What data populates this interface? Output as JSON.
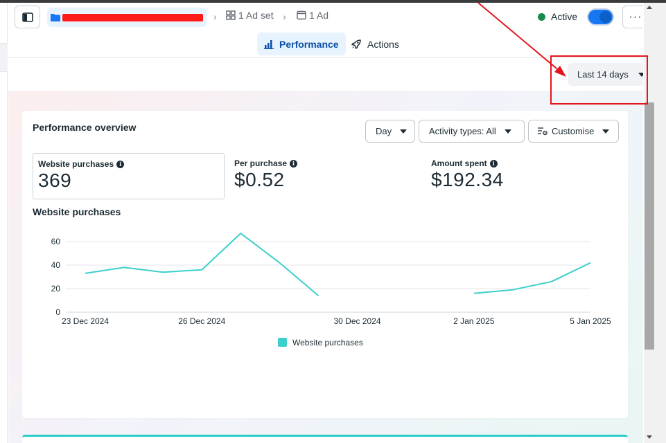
{
  "header": {
    "campaign_icon": "folder-icon",
    "adset_label": "1 Ad set",
    "ad_label": "1 Ad",
    "status_label": "Active",
    "status_color": "#1a8a4a",
    "toggle_on": true,
    "more_label": "···"
  },
  "tabs": [
    {
      "label": "Performance",
      "icon": "bar-chart-icon",
      "active": true
    },
    {
      "label": "Actions",
      "icon": "rocket-icon",
      "active": false
    }
  ],
  "toolbar": {
    "date_range": "Last 14 days"
  },
  "card": {
    "title": "Performance overview",
    "controls": {
      "granularity": "Day",
      "activity": "Activity types: All",
      "customise": "Customise"
    },
    "metrics": [
      {
        "label": "Website purchases",
        "value": "369"
      },
      {
        "label": "Per purchase",
        "value": "$0.52"
      },
      {
        "label": "Amount spent",
        "value": "$192.34"
      }
    ],
    "chart_title": "Website purchases"
  },
  "chart_data": {
    "type": "line",
    "title": "Website purchases",
    "xlabel": "",
    "ylabel": "",
    "x": [
      "2024-12-23",
      "2024-12-24",
      "2024-12-25",
      "2024-12-26",
      "2024-12-27",
      "2024-12-28",
      "2024-12-29",
      "2024-12-30",
      "2024-12-31",
      "2025-01-01",
      "2025-01-02",
      "2025-01-03",
      "2025-01-04",
      "2025-01-05"
    ],
    "x_tick_labels": [
      "23 Dec 2024",
      "26 Dec 2024",
      "30 Dec 2024",
      "2 Jan 2025",
      "5 Jan 2025"
    ],
    "x_tick_dates": [
      "2024-12-23",
      "2024-12-26",
      "2024-12-30",
      "2025-01-02",
      "2025-01-05"
    ],
    "ylim": [
      0,
      70
    ],
    "y_ticks": [
      0,
      20,
      40,
      60
    ],
    "grid": true,
    "legend": "bottom-center",
    "series": [
      {
        "name": "Website purchases",
        "color": "#3ccfcc",
        "values": [
          33,
          38,
          34,
          36,
          67,
          42,
          14,
          null,
          null,
          null,
          16,
          19,
          26,
          42
        ]
      }
    ]
  },
  "annotation": {
    "color": "#e4151b"
  }
}
